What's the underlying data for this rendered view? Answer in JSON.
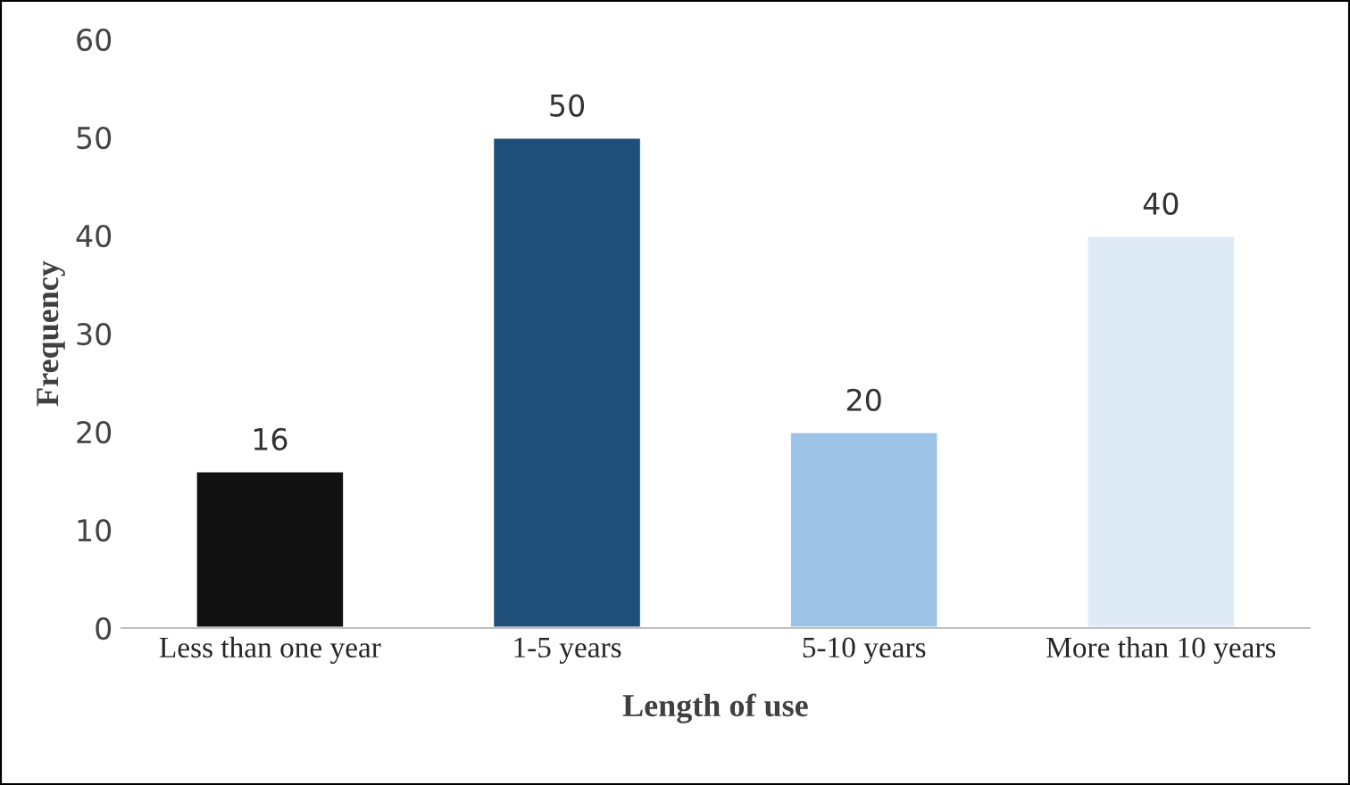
{
  "chart_data": {
    "type": "bar",
    "xlabel": "Length of use",
    "ylabel": "Frequency",
    "categories": [
      "Less than one year",
      "1-5 years",
      "5-10 years",
      "More than 10 years"
    ],
    "values": [
      16,
      50,
      20,
      40
    ],
    "colors": [
      "#111111",
      "#1f4e79",
      "#9dc3e6",
      "#deebf7"
    ],
    "ylim": [
      0,
      60
    ],
    "yticks": [
      0,
      10,
      20,
      30,
      40,
      50,
      60
    ],
    "grid": false,
    "data_labels": true
  }
}
